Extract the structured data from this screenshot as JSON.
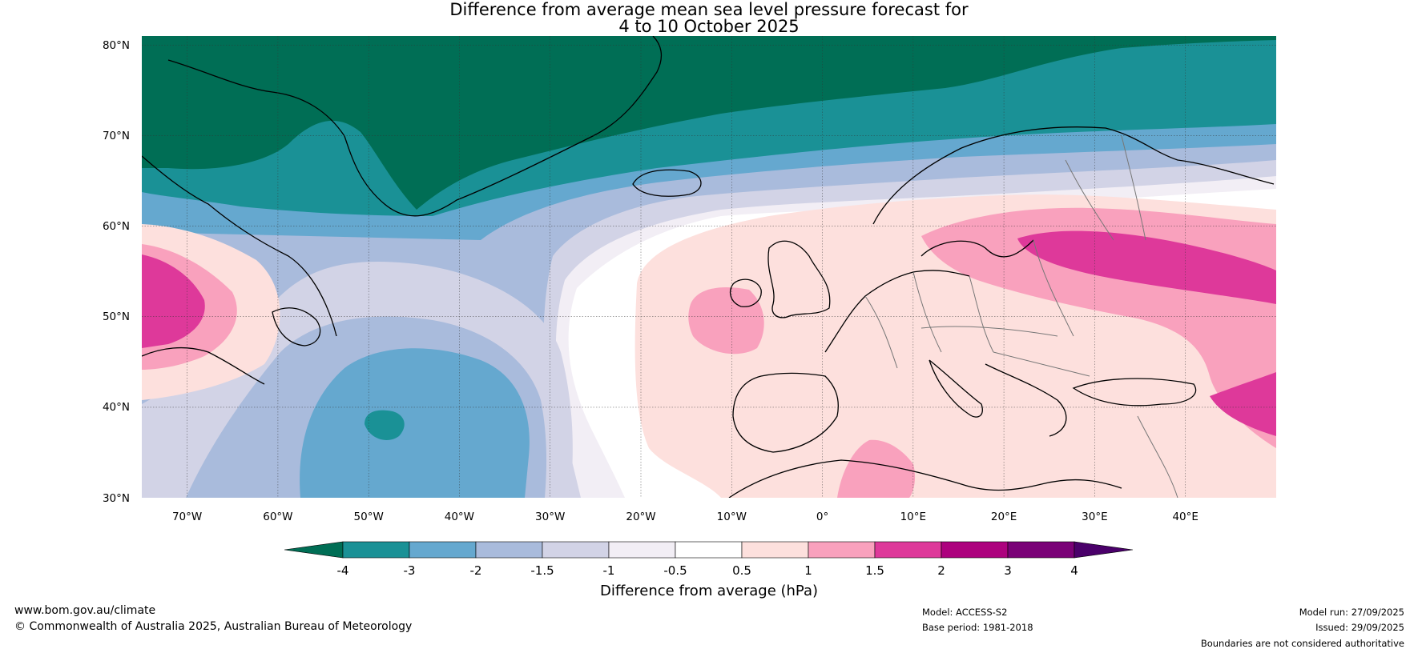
{
  "title": {
    "line1": "Difference from average mean sea level pressure forecast for",
    "line2": "4 to 10 October 2025"
  },
  "map": {
    "lat_labels": [
      "80°N",
      "70°N",
      "60°N",
      "50°N",
      "40°N",
      "30°N"
    ],
    "lon_labels": [
      "70°W",
      "60°W",
      "50°W",
      "40°W",
      "30°W",
      "20°W",
      "10°W",
      "0°",
      "10°E",
      "20°E",
      "30°E",
      "40°E"
    ],
    "lat_range": [
      30,
      81
    ],
    "lon_range": [
      -75,
      50
    ]
  },
  "colorbar": {
    "labels": [
      "-4",
      "-3",
      "-2",
      "-1.5",
      "-1",
      "-0.5",
      "0.5",
      "1",
      "1.5",
      "2",
      "3",
      "4"
    ],
    "colors": [
      "#006e55",
      "#1a9196",
      "#65a8cf",
      "#a9bbdc",
      "#d2d3e6",
      "#f2eef5",
      "#ffffff",
      "#fde0dd",
      "#f9a1bd",
      "#de399a",
      "#ad017e",
      "#7a0177",
      "#4a006a"
    ],
    "title": "Difference from average (hPa)"
  },
  "footer": {
    "website": "www.bom.gov.au/climate",
    "copyright": "© Commonwealth of Australia 2025, Australian Bureau of Meteorology",
    "model": "Model: ACCESS-S2",
    "base_period": "Base period: 1981-2018",
    "model_run": "Model run: 27/09/2025",
    "issued": "Issued: 29/09/2025",
    "disclaimer": "Boundaries are not considered authoritative"
  }
}
